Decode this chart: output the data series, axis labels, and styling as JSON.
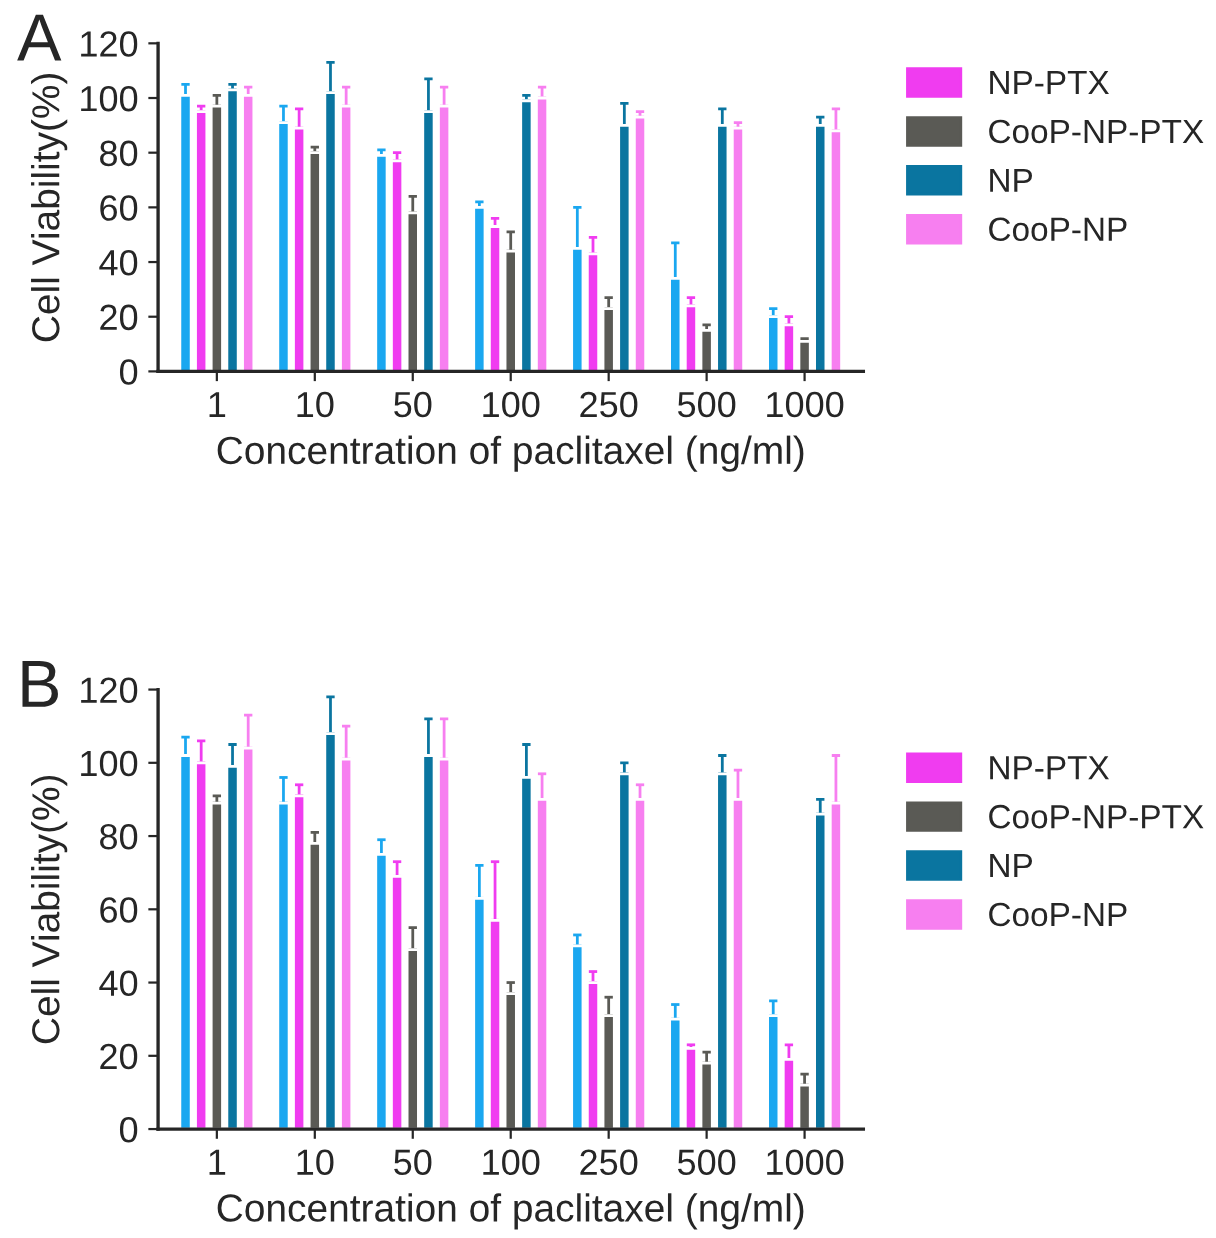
{
  "chart_data": [
    {
      "type": "bar",
      "annotations": [
        "A"
      ],
      "xlabel": "Concentration of paclitaxel (ng/ml)",
      "ylabel": "Cell Viability(%)",
      "categories": [
        "1",
        "10",
        "50",
        "100",
        "250",
        "500",
        "1000"
      ],
      "ylim": [
        0,
        120
      ],
      "yticks": [
        0,
        20,
        40,
        60,
        80,
        100,
        120
      ],
      "legend": "right",
      "grid": false,
      "series": [
        {
          "color": "#1aa7f0",
          "values": [
            101,
            91,
            79,
            60,
            45,
            34,
            20
          ],
          "errors": [
            [
              101,
              105
            ],
            [
              91,
              97
            ],
            [
              79,
              81
            ],
            [
              60,
              62
            ],
            [
              45,
              60
            ],
            [
              34,
              47
            ],
            [
              20,
              23
            ]
          ]
        },
        {
          "name": "NP-PTX",
          "color": "#f03cf0",
          "values": [
            95,
            89,
            77,
            53,
            43,
            24,
            17
          ],
          "errors": [
            [
              95,
              97
            ],
            [
              89,
              96
            ],
            [
              77,
              80
            ],
            [
              53,
              56
            ],
            [
              43,
              49
            ],
            [
              24,
              27
            ],
            [
              17,
              20
            ]
          ]
        },
        {
          "name": "CooP-NP-PTX",
          "color": "#5a5a55",
          "values": [
            97,
            80,
            58,
            44,
            23,
            15,
            11
          ],
          "errors": [
            [
              97,
              101
            ],
            [
              80,
              82
            ],
            [
              58,
              64
            ],
            [
              44,
              51
            ],
            [
              23,
              27
            ],
            [
              15,
              17
            ],
            [
              11,
              12
            ]
          ]
        },
        {
          "name": "NP",
          "color": "#0a75a0",
          "values": [
            103,
            102,
            95,
            99,
            90,
            90,
            90
          ],
          "errors": [
            [
              103,
              105
            ],
            [
              102,
              113
            ],
            [
              95,
              107
            ],
            [
              99,
              101
            ],
            [
              90,
              98
            ],
            [
              90,
              96
            ],
            [
              90,
              93
            ]
          ]
        },
        {
          "name": "CooP-NP",
          "color": "#f77ff0",
          "values": [
            101,
            97,
            97,
            100,
            93,
            89,
            88
          ],
          "errors": [
            [
              101,
              104
            ],
            [
              97,
              104
            ],
            [
              97,
              104
            ],
            [
              100,
              104
            ],
            [
              93,
              95
            ],
            [
              89,
              91
            ],
            [
              88,
              96
            ]
          ]
        }
      ]
    },
    {
      "type": "bar",
      "annotations": [
        "B"
      ],
      "xlabel": "Concentration of paclitaxel (ng/ml)",
      "ylabel": "Cell Viability(%)",
      "categories": [
        "1",
        "10",
        "50",
        "100",
        "250",
        "500",
        "1000"
      ],
      "ylim": [
        0,
        120
      ],
      "yticks": [
        0,
        20,
        40,
        60,
        80,
        100,
        120
      ],
      "legend": "right",
      "grid": false,
      "series": [
        {
          "color": "#1aa7f0",
          "values": [
            102,
            89,
            75,
            63,
            50,
            30,
            31
          ],
          "errors": [
            [
              102,
              107
            ],
            [
              89,
              96
            ],
            [
              75,
              79
            ],
            [
              63,
              72
            ],
            [
              50,
              53
            ],
            [
              30,
              34
            ],
            [
              31,
              35
            ]
          ]
        },
        {
          "name": "NP-PTX",
          "color": "#f03cf0",
          "values": [
            100,
            91,
            69,
            57,
            40,
            22,
            19
          ],
          "errors": [
            [
              100,
              106
            ],
            [
              91,
              94
            ],
            [
              69,
              73
            ],
            [
              57,
              73
            ],
            [
              40,
              43
            ],
            [
              22,
              23
            ],
            [
              19,
              23
            ]
          ]
        },
        {
          "name": "CooP-NP-PTX",
          "color": "#5a5a55",
          "values": [
            89,
            78,
            49,
            37,
            31,
            18,
            12
          ],
          "errors": [
            [
              89,
              91
            ],
            [
              78,
              81
            ],
            [
              49,
              55
            ],
            [
              37,
              40
            ],
            [
              31,
              36
            ],
            [
              18,
              21
            ],
            [
              12,
              15
            ]
          ]
        },
        {
          "name": "NP",
          "color": "#0a75a0",
          "values": [
            99,
            108,
            102,
            96,
            97,
            97,
            86
          ],
          "errors": [
            [
              99,
              105
            ],
            [
              108,
              118
            ],
            [
              102,
              112
            ],
            [
              96,
              105
            ],
            [
              97,
              100
            ],
            [
              97,
              102
            ],
            [
              86,
              90
            ]
          ]
        },
        {
          "name": "CooP-NP",
          "color": "#f77ff0",
          "values": [
            104,
            101,
            101,
            90,
            90,
            90,
            89
          ],
          "errors": [
            [
              104,
              113
            ],
            [
              101,
              110
            ],
            [
              101,
              112
            ],
            [
              90,
              97
            ],
            [
              90,
              94
            ],
            [
              90,
              98
            ],
            [
              89,
              102
            ]
          ]
        }
      ]
    }
  ]
}
